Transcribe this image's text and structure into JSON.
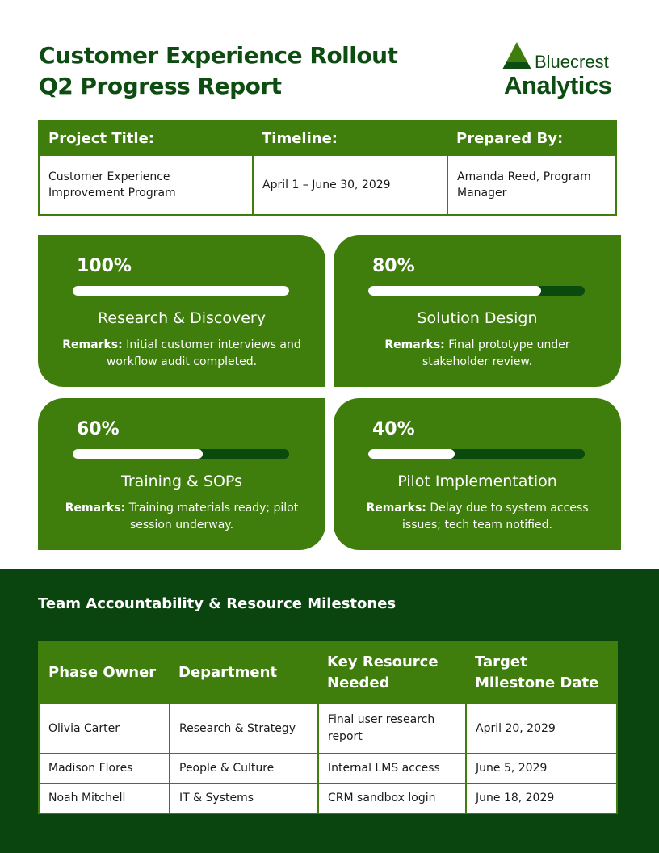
{
  "header": {
    "title_line1": "Customer Experience Rollout",
    "title_line2": "Q2 Progress Report"
  },
  "logo": {
    "line1": "Bluecrest",
    "line2": "Analytics"
  },
  "info": {
    "headers": [
      "Project Title:",
      "Timeline:",
      "Prepared By:"
    ],
    "values": [
      "Customer Experience Improvement Program",
      "April 1 – June 30, 2029",
      "Amanda Reed, Program Manager"
    ]
  },
  "colors": {
    "primary": "#3f7d0c",
    "dark": "#0a4510",
    "title": "#0e4d12"
  },
  "phases": [
    {
      "percent_label": "100%",
      "percent": 100,
      "name": "Research & Discovery",
      "remarks_label": "Remarks:",
      "remarks": "Initial customer interviews and workflow audit completed."
    },
    {
      "percent_label": "80%",
      "percent": 80,
      "name": "Solution Design",
      "remarks_label": "Remarks:",
      "remarks": "Final prototype under stakeholder review."
    },
    {
      "percent_label": "60%",
      "percent": 60,
      "name": "Training & SOPs",
      "remarks_label": "Remarks:",
      "remarks": "Training materials ready; pilot session underway."
    },
    {
      "percent_label": "40%",
      "percent": 40,
      "name": "Pilot Implementation",
      "remarks_label": "Remarks:",
      "remarks": "Delay due to system access issues; tech team notified."
    }
  ],
  "team": {
    "heading": "Team Accountability & Resource Milestones",
    "headers": [
      "Phase Owner",
      "Department",
      "Key Resource Needed",
      "Target Milestone Date"
    ],
    "rows": [
      [
        "Olivia Carter",
        "Research & Strategy",
        "Final user research report",
        "April 20, 2029"
      ],
      [
        "Madison Flores",
        "People & Culture",
        "Internal LMS access",
        "June 5, 2029"
      ],
      [
        "Noah Mitchell",
        "IT & Systems",
        "CRM sandbox login",
        "June 18, 2029"
      ]
    ]
  }
}
